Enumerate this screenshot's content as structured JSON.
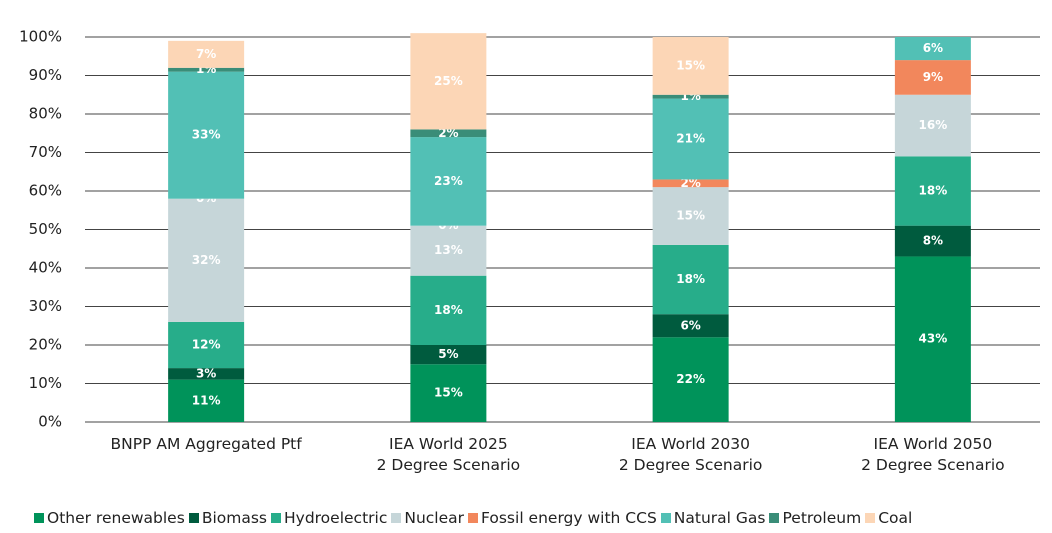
{
  "chart_data": {
    "type": "stacked_bar",
    "categories": [
      "BNPP AM Aggregated Ptf",
      "IEA World 2025\n2 Degree Scenario",
      "IEA World 2030\n2 Degree Scenario",
      "IEA World 2050\n2 Degree Scenario"
    ],
    "series": [
      {
        "name": "Other renewables",
        "color": "#00935a",
        "values": [
          11,
          15,
          22,
          43
        ],
        "value_labels": [
          "11%",
          "15%",
          "22%",
          "43%"
        ]
      },
      {
        "name": "Biomass",
        "color": "#005b3e",
        "values": [
          3,
          5,
          6,
          8
        ],
        "value_labels": [
          "3%",
          "5%",
          "6%",
          "8%"
        ]
      },
      {
        "name": "Hydroelectric",
        "color": "#27ad8a",
        "values": [
          12,
          18,
          18,
          18
        ],
        "value_labels": [
          "12%",
          "18%",
          "18%",
          "18%"
        ]
      },
      {
        "name": "Nuclear",
        "color": "#c6d6d9",
        "values": [
          32,
          13,
          15,
          16
        ],
        "value_labels": [
          "32%",
          "13%",
          "15%",
          "16%"
        ]
      },
      {
        "name": "Fossil energy with CCS",
        "color": "#f2875c",
        "values": [
          0,
          0,
          2,
          9
        ],
        "value_labels": [
          "0%",
          "0%",
          "2%",
          "9%"
        ]
      },
      {
        "name": "Natural Gas",
        "color": "#52c0b5",
        "values": [
          33,
          23,
          21,
          6
        ],
        "value_labels": [
          "33%",
          "23%",
          "21%",
          "6%"
        ]
      },
      {
        "name": "Petroleum",
        "color": "#3a8d78",
        "values": [
          1,
          2,
          1,
          null
        ],
        "value_labels": [
          "1%",
          "2%",
          "1%",
          null
        ]
      },
      {
        "name": "Coal",
        "color": "#fcd6b6",
        "values": [
          7,
          25,
          15,
          null
        ],
        "value_labels": [
          "7%",
          "25%",
          "15%",
          null
        ]
      }
    ],
    "ylim": [
      0,
      100
    ],
    "yticks": [
      {
        "value": 0,
        "label": "0%"
      },
      {
        "value": 10,
        "label": "10%"
      },
      {
        "value": 20,
        "label": "20%"
      },
      {
        "value": 30,
        "label": "30%"
      },
      {
        "value": 40,
        "label": "40%"
      },
      {
        "value": 50,
        "label": "50%"
      },
      {
        "value": 60,
        "label": "60%"
      },
      {
        "value": 70,
        "label": "70%"
      },
      {
        "value": 80,
        "label": "80%"
      },
      {
        "value": 90,
        "label": "90%"
      },
      {
        "value": 100,
        "label": "100%"
      }
    ],
    "grid": true
  }
}
